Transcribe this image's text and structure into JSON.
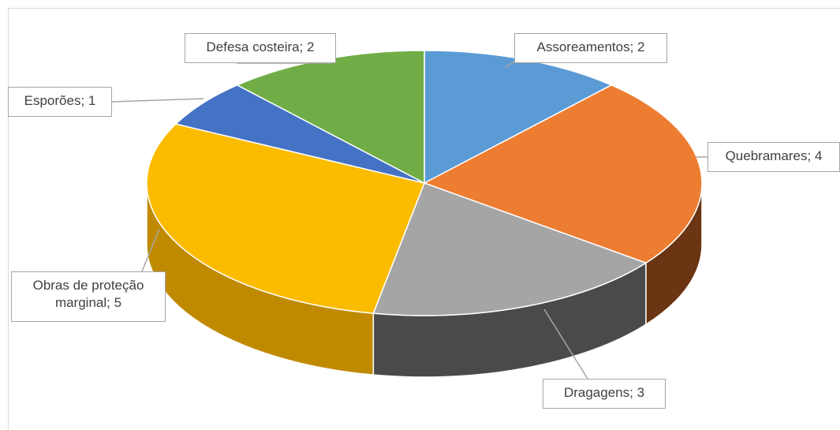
{
  "chart_data": {
    "type": "pie",
    "values": [
      2,
      4,
      3,
      5,
      1,
      2
    ],
    "value_labels": [
      "Assoreamentos; 2",
      "Quebramares; 4",
      "Dragagens; 3",
      "Obras de proteção marginal; 5",
      "Esporões; 1",
      "Defesa costeira; 2"
    ],
    "colors": [
      "#5b9bd5",
      "#ed7d31",
      "#a5a5a5",
      "#fbbc00",
      "#4472c4",
      "#70ad47"
    ],
    "side_colors": [
      "#3f6f9a",
      "#6b3412",
      "#4a4a4a",
      "#c08a00",
      "#2f4f8a",
      "#4f7a32"
    ]
  }
}
